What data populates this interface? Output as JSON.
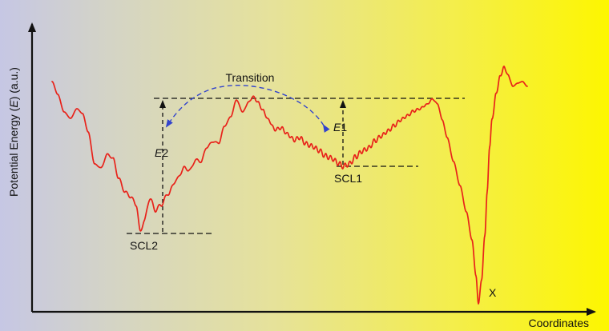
{
  "diagram": {
    "y_axis_label": {
      "prefix": "Potential Energy (",
      "symbol": "E",
      "suffix": ") (a.u.)"
    },
    "x_axis_label": "Coordinates",
    "transition_label": "Transition",
    "e1_label": {
      "symbol": "E",
      "index": "1"
    },
    "e2_label": {
      "symbol": "E",
      "index": "2"
    },
    "scl1_label": "SCL1",
    "scl2_label": "SCL2",
    "x_label": "X",
    "colors": {
      "curve": "#e8221a",
      "arrow": "#3344cc",
      "axis": "#111111",
      "dashed": "#111111"
    }
  }
}
